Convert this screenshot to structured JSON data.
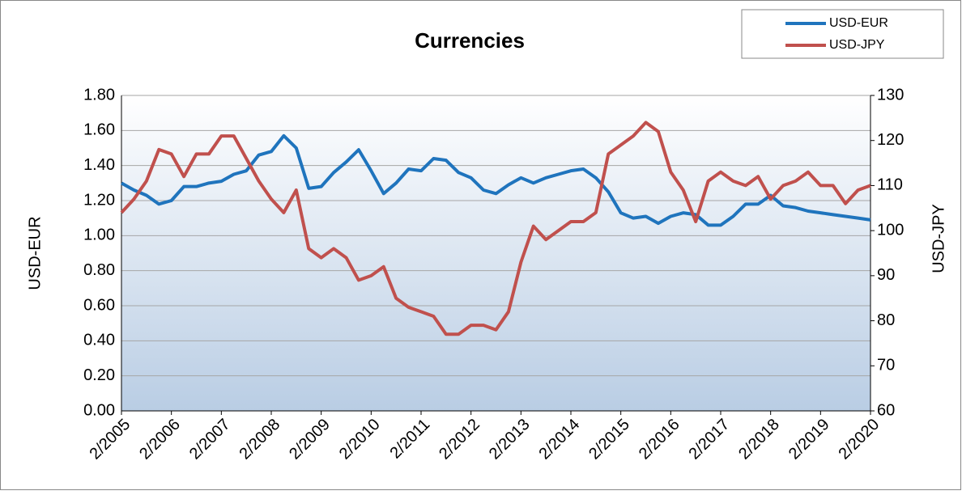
{
  "chart_data": {
    "type": "line",
    "title": "Currencies",
    "x": [
      "2/2005",
      "5/2005",
      "8/2005",
      "11/2005",
      "2/2006",
      "5/2006",
      "8/2006",
      "11/2006",
      "2/2007",
      "5/2007",
      "8/2007",
      "11/2007",
      "2/2008",
      "5/2008",
      "8/2008",
      "11/2008",
      "2/2009",
      "5/2009",
      "8/2009",
      "11/2009",
      "2/2010",
      "5/2010",
      "8/2010",
      "11/2010",
      "2/2011",
      "5/2011",
      "8/2011",
      "11/2011",
      "2/2012",
      "5/2012",
      "8/2012",
      "11/2012",
      "2/2013",
      "5/2013",
      "8/2013",
      "11/2013",
      "2/2014",
      "5/2014",
      "8/2014",
      "11/2014",
      "2/2015",
      "5/2015",
      "8/2015",
      "11/2015",
      "2/2016",
      "5/2016",
      "8/2016",
      "11/2016",
      "2/2017",
      "5/2017",
      "8/2017",
      "11/2017",
      "2/2018",
      "5/2018",
      "8/2018",
      "11/2018",
      "2/2019",
      "5/2019",
      "8/2019",
      "11/2019",
      "2/2020"
    ],
    "series": [
      {
        "name": "USD-EUR",
        "color": "#1f74bd",
        "axis": "y",
        "values": [
          1.3,
          1.26,
          1.23,
          1.18,
          1.2,
          1.28,
          1.28,
          1.3,
          1.31,
          1.35,
          1.37,
          1.46,
          1.48,
          1.57,
          1.5,
          1.27,
          1.28,
          1.36,
          1.42,
          1.49,
          1.37,
          1.24,
          1.3,
          1.38,
          1.37,
          1.44,
          1.43,
          1.36,
          1.33,
          1.26,
          1.24,
          1.29,
          1.33,
          1.3,
          1.33,
          1.35,
          1.37,
          1.38,
          1.33,
          1.25,
          1.13,
          1.1,
          1.11,
          1.07,
          1.11,
          1.13,
          1.12,
          1.06,
          1.06,
          1.11,
          1.18,
          1.18,
          1.23,
          1.17,
          1.16,
          1.14,
          1.13,
          1.12,
          1.11,
          1.1,
          1.09
        ]
      },
      {
        "name": "USD-JPY",
        "color": "#c0504d",
        "axis": "y2",
        "values": [
          104,
          107,
          111,
          118,
          117,
          112,
          117,
          117,
          121,
          121,
          116,
          111,
          107,
          104,
          109,
          96,
          94,
          96,
          94,
          89,
          90,
          92,
          85,
          83,
          82,
          81,
          77,
          77,
          79,
          79,
          78,
          82,
          93,
          101,
          98,
          100,
          102,
          102,
          104,
          117,
          119,
          121,
          124,
          122,
          113,
          109,
          102,
          111,
          113,
          111,
          110,
          112,
          107,
          110,
          111,
          113,
          110,
          110,
          106,
          109,
          110
        ]
      }
    ],
    "ylabel": "USD-EUR",
    "y2label": "USD-JPY",
    "ylim": [
      0,
      1.8
    ],
    "yticks": [
      {
        "value": 0,
        "label": "0.00"
      },
      {
        "value": 0.2,
        "label": "0.20"
      },
      {
        "value": 0.4,
        "label": "0.40"
      },
      {
        "value": 0.6,
        "label": "0.60"
      },
      {
        "value": 0.8,
        "label": "0.80"
      },
      {
        "value": 1,
        "label": "1.00"
      },
      {
        "value": 1.2,
        "label": "1.20"
      },
      {
        "value": 1.4,
        "label": "1.40"
      },
      {
        "value": 1.6,
        "label": "1.60"
      },
      {
        "value": 1.8,
        "label": "1.80"
      }
    ],
    "y2lim": [
      60,
      130
    ],
    "y2ticks": [
      60,
      70,
      80,
      90,
      100,
      110,
      120,
      130
    ],
    "xticks": [
      "2/2005",
      "2/2006",
      "2/2007",
      "2/2008",
      "2/2009",
      "2/2010",
      "2/2011",
      "2/2012",
      "2/2013",
      "2/2014",
      "2/2015",
      "2/2016",
      "2/2017",
      "2/2018",
      "2/2019",
      "2/2020"
    ],
    "grid": true,
    "legend": "top-right"
  }
}
